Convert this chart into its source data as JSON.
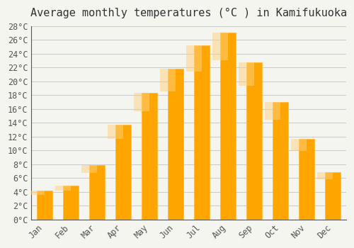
{
  "title": "Average monthly temperatures (°C ) in Kamifukuoka",
  "months": [
    "Jan",
    "Feb",
    "Mar",
    "Apr",
    "May",
    "Jun",
    "Jul",
    "Aug",
    "Sep",
    "Oct",
    "Nov",
    "Dec"
  ],
  "temperatures": [
    4.2,
    4.9,
    7.9,
    13.7,
    18.4,
    21.8,
    25.2,
    27.1,
    22.8,
    17.0,
    11.7,
    6.9
  ],
  "bar_color_main": "#FFA500",
  "bar_color_edge": "#FFB733",
  "ylim": [
    0,
    28
  ],
  "yticks": [
    0,
    2,
    4,
    6,
    8,
    10,
    12,
    14,
    16,
    18,
    20,
    22,
    24,
    26,
    28
  ],
  "background_color": "#f5f5f0",
  "grid_color": "#cccccc",
  "title_fontsize": 11,
  "tick_fontsize": 8.5,
  "bar_width": 0.6
}
